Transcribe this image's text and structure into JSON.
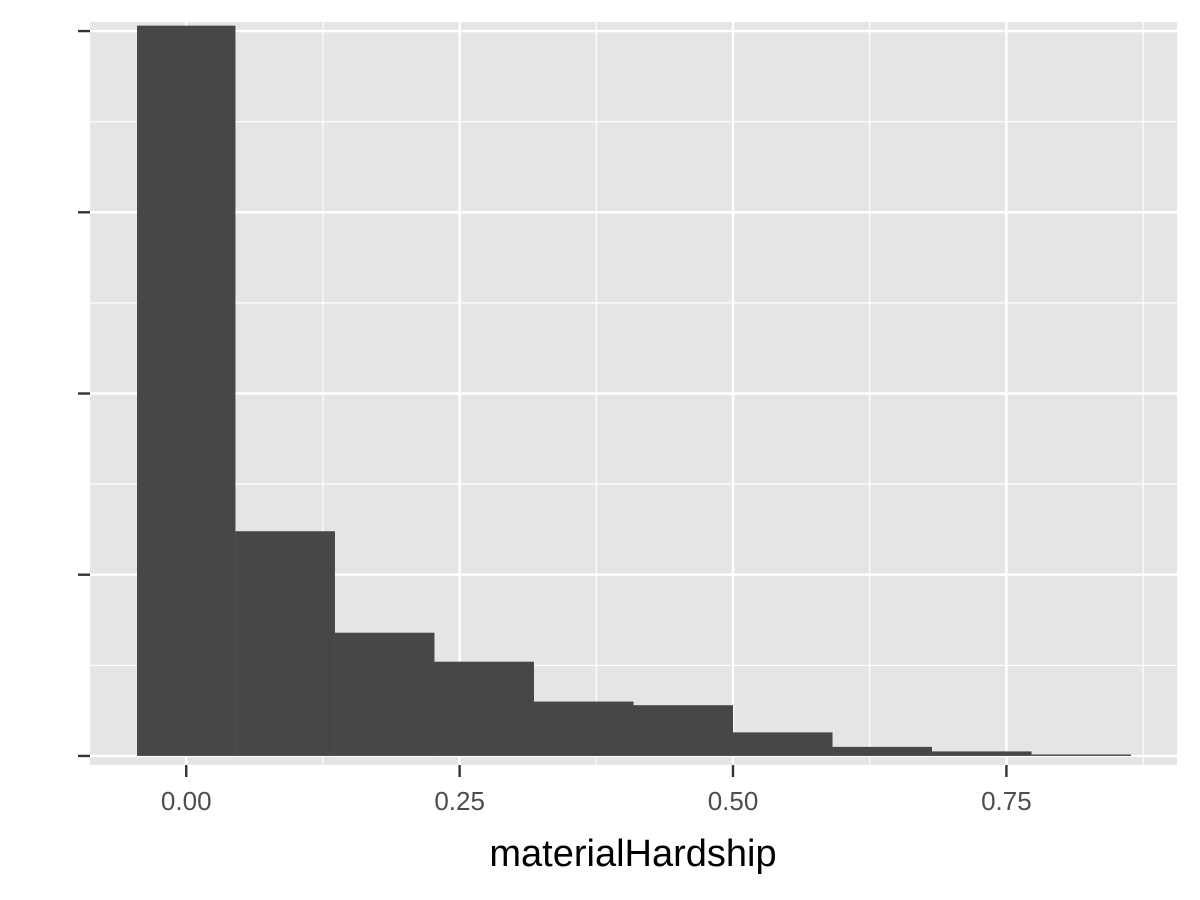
{
  "chart_data": {
    "type": "bar",
    "subtype": "histogram",
    "xlabel": "materialHardship",
    "ylabel": "",
    "title": "",
    "y_ticks_labeled": false,
    "y_ticks_count": 5,
    "xlim": [
      -0.088,
      0.906
    ],
    "x_ticks": [
      {
        "value": 0.0,
        "label": "0.00"
      },
      {
        "value": 0.25,
        "label": "0.25"
      },
      {
        "value": 0.5,
        "label": "0.50"
      },
      {
        "value": 0.75,
        "label": "0.75"
      }
    ],
    "ylim": [
      -0.05,
      4.05
    ],
    "y_tick_values": [
      0,
      1,
      2,
      3,
      4
    ],
    "bins": [
      {
        "x0": -0.045,
        "x1": 0.045,
        "value": 4.03
      },
      {
        "x0": 0.045,
        "x1": 0.136,
        "value": 1.24
      },
      {
        "x0": 0.136,
        "x1": 0.227,
        "value": 0.68
      },
      {
        "x0": 0.227,
        "x1": 0.318,
        "value": 0.52
      },
      {
        "x0": 0.318,
        "x1": 0.409,
        "value": 0.3
      },
      {
        "x0": 0.409,
        "x1": 0.5,
        "value": 0.28
      },
      {
        "x0": 0.5,
        "x1": 0.591,
        "value": 0.13
      },
      {
        "x0": 0.591,
        "x1": 0.682,
        "value": 0.05
      },
      {
        "x0": 0.682,
        "x1": 0.773,
        "value": 0.025
      },
      {
        "x0": 0.773,
        "x1": 0.864,
        "value": 0.008
      }
    ],
    "grid": true,
    "colors": {
      "panel": "#e5e5e5",
      "grid": "#ffffff",
      "bar": "#474747",
      "tick": "#333333",
      "tick_label": "#4d4d4d"
    }
  }
}
